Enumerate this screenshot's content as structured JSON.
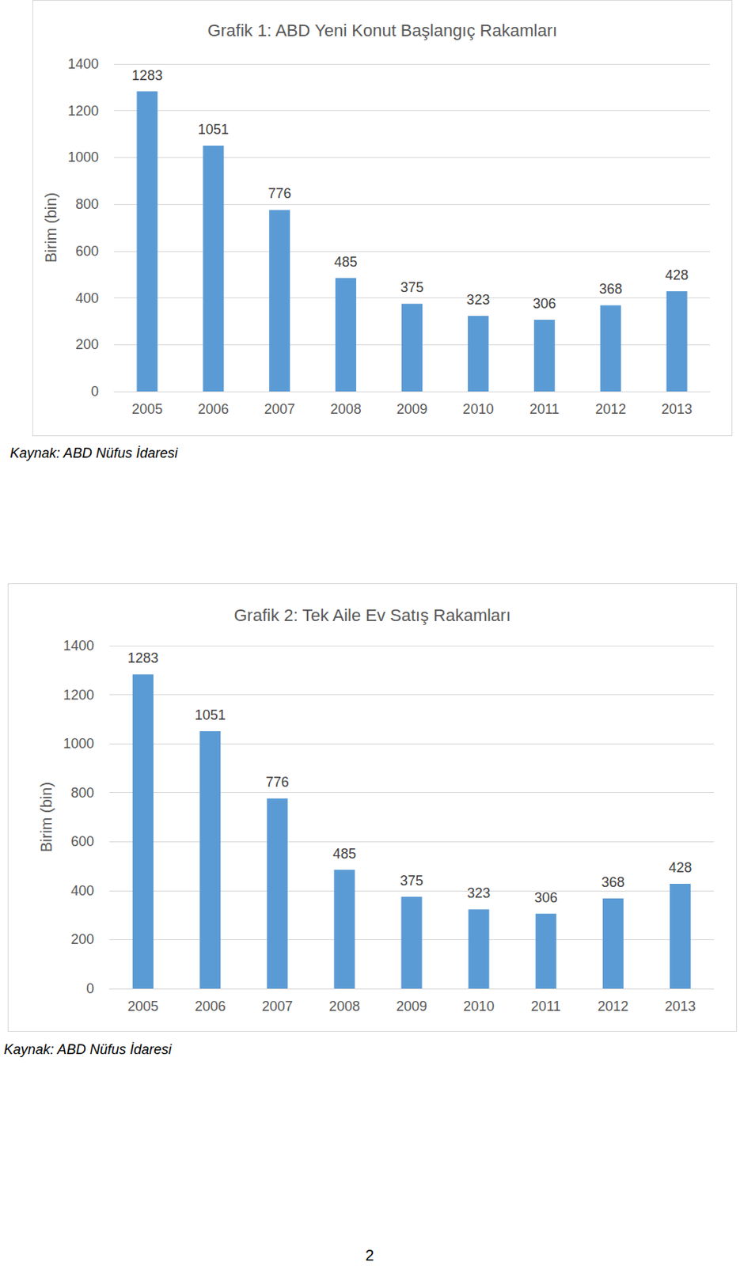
{
  "chart_data": [
    {
      "type": "bar",
      "title": "Grafik 1: ABD Yeni Konut Başlangıç Rakamları",
      "y_label": "Birim (bin)",
      "categories": [
        "2005",
        "2006",
        "2007",
        "2008",
        "2009",
        "2010",
        "2011",
        "2012",
        "2013"
      ],
      "values": [
        1283,
        1051,
        776,
        485,
        375,
        323,
        306,
        368,
        428
      ],
      "color": "#5b9bd5",
      "ylim": [
        0,
        1400
      ],
      "yticks": [
        0,
        200,
        400,
        600,
        800,
        1000,
        1200,
        1400
      ],
      "grid": true,
      "data_labels": true,
      "source": "Kaynak: ABD Nüfus İdaresi"
    },
    {
      "type": "bar",
      "title": "Grafik 2: Tek Aile Ev Satış Rakamları",
      "y_label": "Birim (bin)",
      "categories": [
        "2005",
        "2006",
        "2007",
        "2008",
        "2009",
        "2010",
        "2011",
        "2012",
        "2013"
      ],
      "values": [
        1283,
        1051,
        776,
        485,
        375,
        323,
        306,
        368,
        428
      ],
      "color": "#5b9bd5",
      "ylim": [
        0,
        1400
      ],
      "yticks": [
        0,
        200,
        400,
        600,
        800,
        1000,
        1200,
        1400
      ],
      "grid": true,
      "data_labels": true,
      "source": "Kaynak: ABD Nüfus İdaresi"
    }
  ],
  "page_number": 2
}
